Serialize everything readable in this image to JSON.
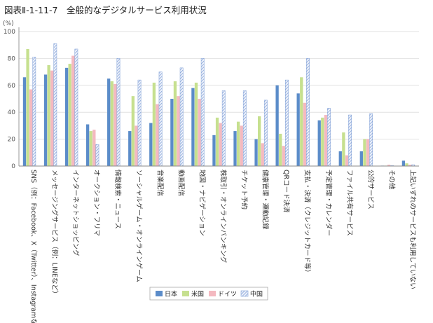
{
  "chart_data": {
    "type": "bar",
    "title": "図表Ⅱ-1-11-7　全般的なデジタルサービス利用状況",
    "ylabel": "(%)",
    "ylim": [
      0,
      100
    ],
    "yticks": [
      0,
      20,
      40,
      60,
      80,
      100
    ],
    "grid": "horizontal",
    "legend_position": "bottom-center",
    "categories": [
      "SNS（例：Facebook、X（Twitter）、Instagramなど）",
      "メッセージングサービス（例：LINEなど）",
      "インターネットショッピング",
      "オークション・フリマ",
      "情報検索・ニュース",
      "ソーシャルゲーム・オンラインゲーム",
      "音楽配信",
      "動画配信",
      "地図・ナビゲーション",
      "株取引・オンラインバンキング",
      "チケット予約",
      "健康管理・運動記録",
      "QRコード決済",
      "支払・決済（クレジットカード等）",
      "予定管理・カレンダー",
      "ファイル共有サービス",
      "公的サービス",
      "その他",
      "上記いずれのサービスも利用していない"
    ],
    "series": [
      {
        "name": "日本",
        "color": "#5b8cc9",
        "values": [
          66,
          68,
          73,
          31,
          65,
          26,
          32,
          50,
          58,
          23,
          26,
          20,
          60,
          54,
          34,
          11,
          11,
          0,
          4
        ]
      },
      {
        "name": "米国",
        "color": "#c6e08f",
        "values": [
          87,
          75,
          76,
          26,
          63,
          52,
          62,
          63,
          62,
          36,
          33,
          37,
          24,
          66,
          36,
          25,
          20,
          0,
          2
        ]
      },
      {
        "name": "ドイツ",
        "color": "#f4b9c0",
        "values": [
          57,
          71,
          82,
          27,
          61,
          30,
          46,
          52,
          50,
          32,
          30,
          17,
          15,
          47,
          38,
          8,
          20,
          1,
          1
        ]
      },
      {
        "name": "中国",
        "color": "#a9bfe6",
        "pattern": "hatch",
        "values": [
          81,
          91,
          87,
          16,
          80,
          64,
          70,
          73,
          80,
          56,
          56,
          49,
          64,
          80,
          43,
          38,
          39,
          0,
          1
        ]
      }
    ]
  }
}
